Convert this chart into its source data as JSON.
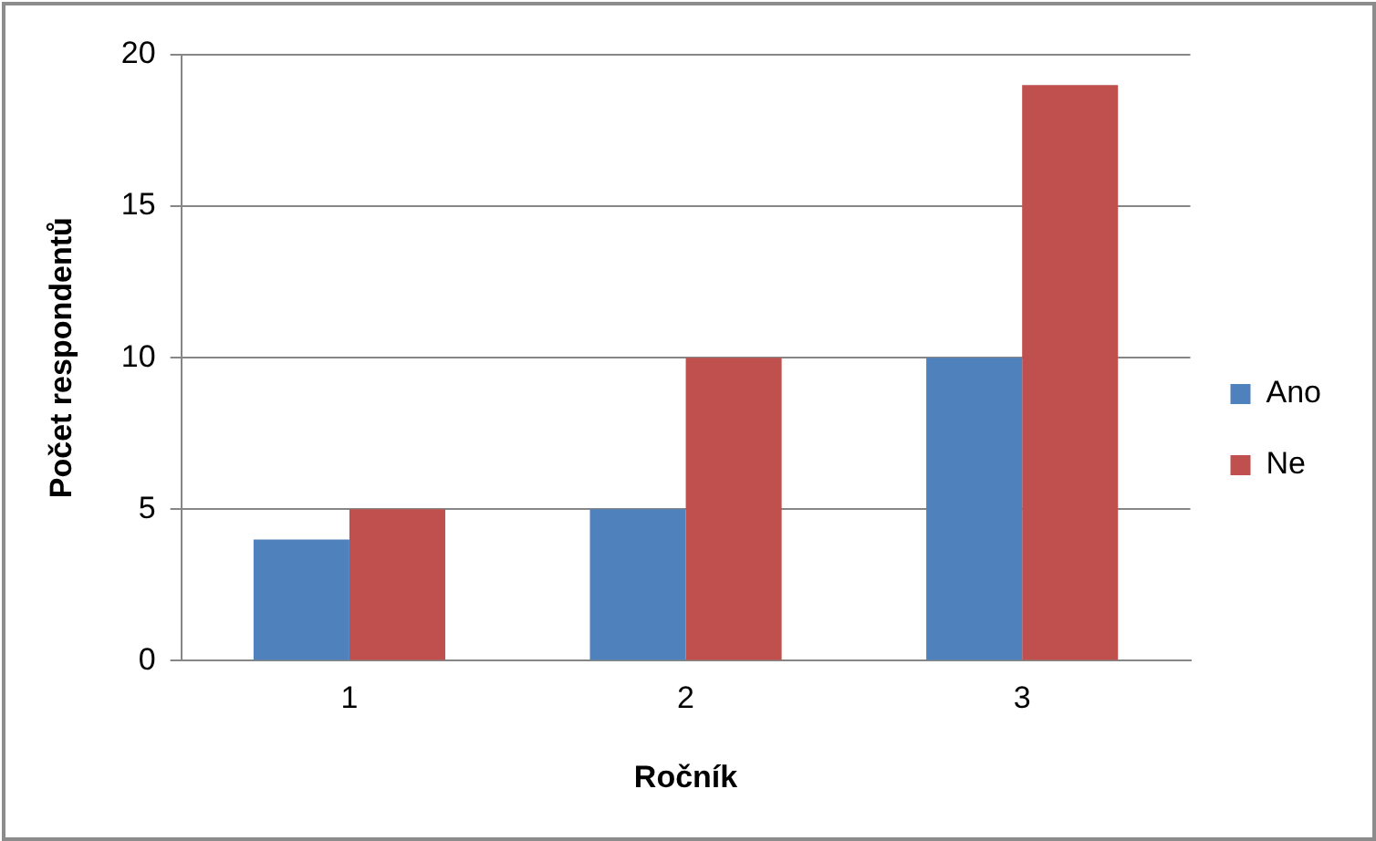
{
  "chart_data": {
    "type": "bar",
    "xlabel": "Ročník",
    "ylabel": "Počet respondentů",
    "categories": [
      "1",
      "2",
      "3"
    ],
    "series": [
      {
        "name": "Ano",
        "color": "#4f81bd",
        "values": [
          4,
          5,
          10
        ]
      },
      {
        "name": "Ne",
        "color": "#c0504d",
        "values": [
          5,
          10,
          19
        ]
      }
    ],
    "ylim": [
      0,
      20
    ],
    "yticks": [
      0,
      5,
      10,
      15,
      20
    ],
    "grid": "y",
    "legend": "right"
  }
}
